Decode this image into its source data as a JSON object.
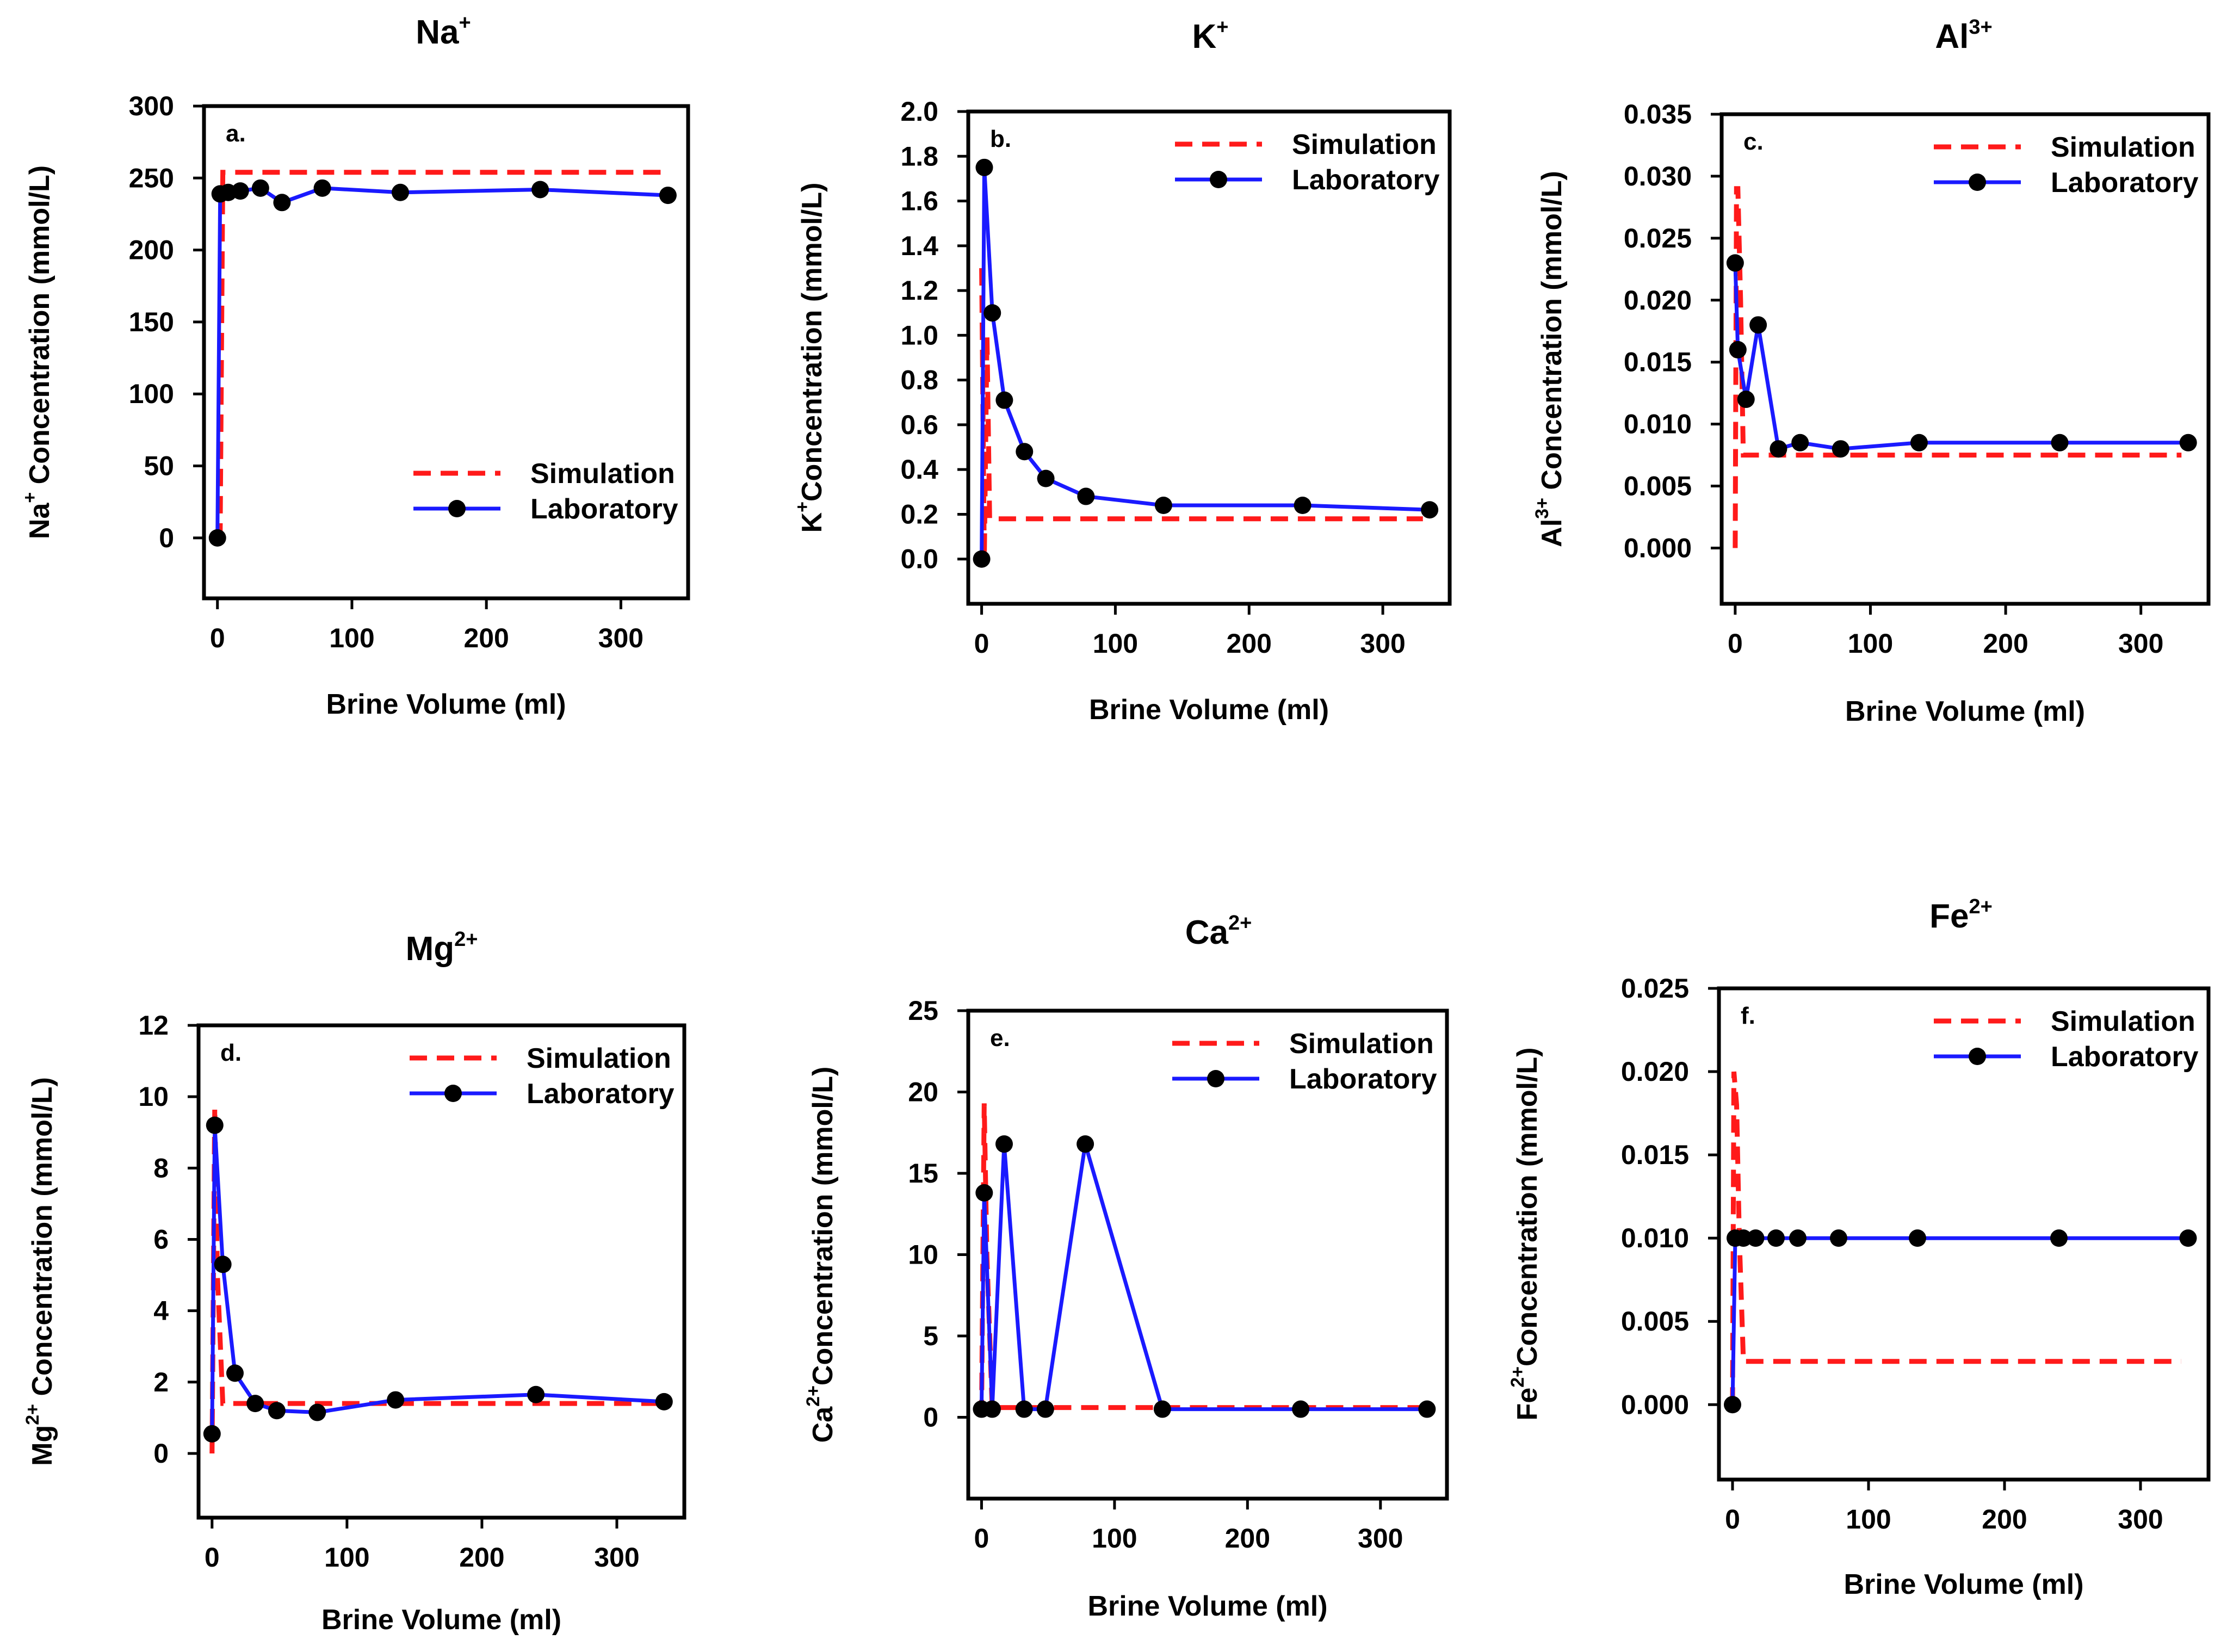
{
  "figure": {
    "panel_count": 6,
    "x_label": "Brine Volume (ml)"
  },
  "chart_data": [
    {
      "type": "line",
      "panel_label": "a.",
      "title": "Na",
      "title_sup": "+",
      "ylabel_main": "Na",
      "ylabel_sup": "+",
      "ylabel_rest": " Concentration (mmol/L)",
      "xlabel": "Brine Volume (ml)",
      "xlim": [
        -10,
        350
      ],
      "ylim": [
        -42,
        300
      ],
      "x_ticks": [
        0,
        100,
        200,
        300
      ],
      "x_tick_labels": [
        "0",
        "100",
        "200",
        "300"
      ],
      "y_ticks": [
        0,
        50,
        100,
        150,
        200,
        250,
        300
      ],
      "y_tick_labels": [
        "0",
        "50",
        "100",
        "150",
        "200",
        "250",
        "300"
      ],
      "legend": {
        "simulation": "Simulation",
        "laboratory": "Laboratory",
        "position": "bottom-right"
      },
      "series": [
        {
          "name": "Simulation",
          "style": "dashed",
          "x": [
            0,
            2,
            4,
            8,
            330
          ],
          "y": [
            0,
            0,
            254,
            254,
            254
          ]
        },
        {
          "name": "Laboratory",
          "style": "solid-markers",
          "x": [
            0,
            2,
            8,
            17,
            32,
            48,
            78,
            136,
            240,
            335
          ],
          "y": [
            0,
            239,
            240,
            241,
            243,
            233,
            243,
            240,
            242,
            238
          ]
        }
      ]
    },
    {
      "type": "line",
      "panel_label": "b.",
      "title": "K",
      "title_sup": "+",
      "ylabel_main": "K",
      "ylabel_sup": "+",
      "ylabel_rest": "Concentration (mmol/L)",
      "xlabel": "Brine Volume (ml)",
      "xlim": [
        -10,
        350
      ],
      "ylim": [
        -0.2,
        2.0
      ],
      "x_ticks": [
        0,
        100,
        200,
        300
      ],
      "x_tick_labels": [
        "0",
        "100",
        "200",
        "300"
      ],
      "y_ticks": [
        0.0,
        0.2,
        0.4,
        0.6,
        0.8,
        1.0,
        1.2,
        1.4,
        1.6,
        1.8,
        2.0
      ],
      "y_tick_labels": [
        "0.0",
        "0.2",
        "0.4",
        "0.6",
        "0.8",
        "1.0",
        "1.2",
        "1.4",
        "1.6",
        "1.8",
        "2.0"
      ],
      "legend": {
        "simulation": "Simulation",
        "laboratory": "Laboratory",
        "position": "top-right"
      },
      "series": [
        {
          "name": "Simulation",
          "style": "dashed",
          "x": [
            0,
            2,
            4,
            6,
            330
          ],
          "y": [
            1.3,
            0.0,
            1.0,
            0.18,
            0.18
          ]
        },
        {
          "name": "Laboratory",
          "style": "solid-markers",
          "x": [
            0,
            2,
            8,
            17,
            32,
            48,
            78,
            136,
            240,
            335
          ],
          "y": [
            0.0,
            1.75,
            1.1,
            0.71,
            0.48,
            0.36,
            0.28,
            0.24,
            0.24,
            0.22
          ]
        }
      ]
    },
    {
      "type": "line",
      "panel_label": "c.",
      "title": "Al",
      "title_sup": "3+",
      "ylabel_main": "Al",
      "ylabel_sup": "3+",
      "ylabel_rest": " Concentration (mmol/L)",
      "xlabel": "Brine Volume (ml)",
      "xlim": [
        -10,
        350
      ],
      "ylim": [
        -0.0045,
        0.035
      ],
      "x_ticks": [
        0,
        100,
        200,
        300
      ],
      "x_tick_labels": [
        "0",
        "100",
        "200",
        "300"
      ],
      "y_ticks": [
        0.0,
        0.005,
        0.01,
        0.015,
        0.02,
        0.025,
        0.03,
        0.035
      ],
      "y_tick_labels": [
        "0.000",
        "0.005",
        "0.010",
        "0.015",
        "0.020",
        "0.025",
        "0.030",
        "0.035"
      ],
      "legend": {
        "simulation": "Simulation",
        "laboratory": "Laboratory",
        "position": "top-right"
      },
      "series": [
        {
          "name": "Simulation",
          "style": "dashed",
          "x": [
            0,
            1,
            2,
            4,
            6,
            330
          ],
          "y": [
            0.0,
            0.029,
            0.029,
            0.02,
            0.0075,
            0.0075
          ]
        },
        {
          "name": "Laboratory",
          "style": "solid-markers",
          "x": [
            0,
            2,
            8,
            17,
            32,
            48,
            78,
            136,
            240,
            335
          ],
          "y": [
            0.023,
            0.016,
            0.012,
            0.018,
            0.008,
            0.0085,
            0.008,
            0.0085,
            0.0085,
            0.0085
          ]
        }
      ]
    },
    {
      "type": "line",
      "panel_label": "d.",
      "title": "Mg",
      "title_sup": "2+",
      "ylabel_main": "Mg",
      "ylabel_sup": "2+",
      "ylabel_rest": " Concentration (mmol/L)",
      "xlabel": "Brine Volume (ml)",
      "xlim": [
        -10,
        350
      ],
      "ylim": [
        -1.8,
        12
      ],
      "x_ticks": [
        0,
        100,
        200,
        300
      ],
      "x_tick_labels": [
        "0",
        "100",
        "200",
        "300"
      ],
      "y_ticks": [
        0,
        2,
        4,
        6,
        8,
        10,
        12
      ],
      "y_tick_labels": [
        "0",
        "2",
        "4",
        "6",
        "8",
        "10",
        "12"
      ],
      "legend": {
        "simulation": "Simulation",
        "laboratory": "Laboratory",
        "position": "top-right"
      },
      "series": [
        {
          "name": "Simulation",
          "style": "dashed",
          "x": [
            0,
            2,
            4,
            8,
            330
          ],
          "y": [
            0.0,
            9.7,
            5.0,
            1.4,
            1.4
          ]
        },
        {
          "name": "Laboratory",
          "style": "solid-markers",
          "x": [
            0,
            2,
            8,
            17,
            32,
            48,
            78,
            136,
            240,
            335
          ],
          "y": [
            0.55,
            9.2,
            5.3,
            2.25,
            1.4,
            1.2,
            1.15,
            1.5,
            1.65,
            1.45
          ]
        }
      ]
    },
    {
      "type": "line",
      "panel_label": "e.",
      "title": "Ca",
      "title_sup": "2+",
      "ylabel_main": "Ca",
      "ylabel_sup": "2+",
      "ylabel_rest": "Concentration (mmol/L)",
      "xlabel": "Brine Volume (ml)",
      "xlim": [
        -10,
        350
      ],
      "ylim": [
        -5,
        25
      ],
      "x_ticks": [
        0,
        100,
        200,
        300
      ],
      "x_tick_labels": [
        "0",
        "100",
        "200",
        "300"
      ],
      "y_ticks": [
        0,
        5,
        10,
        15,
        20,
        25
      ],
      "y_tick_labels": [
        "0",
        "5",
        "10",
        "15",
        "20",
        "25"
      ],
      "legend": {
        "simulation": "Simulation",
        "laboratory": "Laboratory",
        "position": "top-right"
      },
      "series": [
        {
          "name": "Simulation",
          "style": "dashed",
          "x": [
            0,
            2,
            4,
            8,
            330
          ],
          "y": [
            0.0,
            19.3,
            10.0,
            0.6,
            0.6
          ]
        },
        {
          "name": "Laboratory",
          "style": "solid-markers",
          "x": [
            0,
            2,
            8,
            17,
            32,
            48,
            78,
            136,
            240,
            335
          ],
          "y": [
            0.5,
            13.8,
            0.5,
            16.8,
            0.5,
            0.5,
            16.8,
            0.5,
            0.5,
            0.5
          ]
        }
      ]
    },
    {
      "type": "line",
      "panel_label": "f.",
      "title": "Fe",
      "title_sup": "2+",
      "ylabel_main": "Fe",
      "ylabel_sup": "2+",
      "ylabel_rest": "Concentration (mmol/L)",
      "xlabel": "Brine Volume (ml)",
      "xlim": [
        -10,
        350
      ],
      "ylim": [
        -0.0045,
        0.025
      ],
      "x_ticks": [
        0,
        100,
        200,
        300
      ],
      "x_tick_labels": [
        "0",
        "100",
        "200",
        "300"
      ],
      "y_ticks": [
        0.0,
        0.005,
        0.01,
        0.015,
        0.02,
        0.025
      ],
      "y_tick_labels": [
        "0.000",
        "0.005",
        "0.010",
        "0.015",
        "0.020",
        "0.025"
      ],
      "legend": {
        "simulation": "Simulation",
        "laboratory": "Laboratory",
        "position": "top-right"
      },
      "series": [
        {
          "name": "Simulation",
          "style": "dashed",
          "x": [
            0,
            1,
            3,
            5,
            8,
            330
          ],
          "y": [
            0.0,
            0.02,
            0.018,
            0.01,
            0.0026,
            0.0026
          ]
        },
        {
          "name": "Laboratory",
          "style": "solid-markers",
          "x": [
            0,
            2,
            8,
            17,
            32,
            48,
            78,
            136,
            240,
            335
          ],
          "y": [
            0.0,
            0.01,
            0.01,
            0.01,
            0.01,
            0.01,
            0.01,
            0.01,
            0.01,
            0.01
          ]
        }
      ]
    }
  ]
}
